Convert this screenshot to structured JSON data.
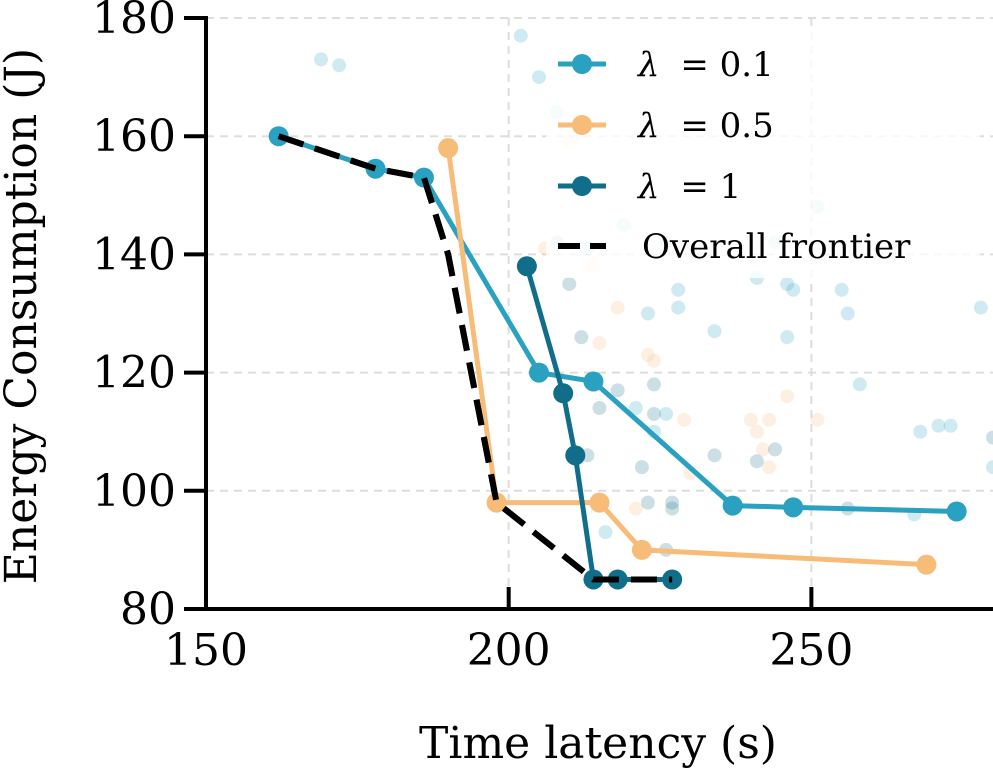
{
  "chart_data": {
    "type": "line",
    "title": "",
    "xlabel": "Time latency (s)",
    "ylabel": "Energy Consumption (J)",
    "xlim": [
      150,
      280
    ],
    "ylim": [
      80,
      180
    ],
    "xticks": [
      150,
      200,
      250
    ],
    "yticks": [
      80,
      100,
      120,
      140,
      160,
      180
    ],
    "grid": true,
    "legend_position": "top-right",
    "series": [
      {
        "name": "λ = 0.1",
        "symbol": "λ",
        "value_text": "= 0.1",
        "color": "#2aa1c0",
        "x": [
          162,
          178,
          186,
          205,
          214,
          237,
          247,
          274
        ],
        "y": [
          160,
          154.5,
          153,
          120,
          118.5,
          97.5,
          97.2,
          96.5
        ]
      },
      {
        "name": "λ = 0.5",
        "symbol": "λ",
        "value_text": "= 0.5",
        "color": "#f8bc79",
        "x": [
          190,
          198,
          215,
          222,
          269
        ],
        "y": [
          158,
          98,
          98,
          90,
          87.5
        ]
      },
      {
        "name": "λ = 1",
        "symbol": "λ",
        "value_text": "= 1",
        "color": "#116e8a",
        "x": [
          203,
          209,
          211,
          214,
          218,
          227
        ],
        "y": [
          138,
          116.5,
          106,
          85,
          85,
          85
        ]
      },
      {
        "name": "Overall frontier",
        "color": "#000000",
        "dashed": true,
        "x": [
          162,
          178,
          186,
          190,
          198,
          214,
          227
        ],
        "y": [
          160,
          154.5,
          153,
          140,
          98,
          85,
          85
        ]
      }
    ],
    "background_scatter": [
      {
        "x": 169,
        "y": 173,
        "c": "#2aa1c0"
      },
      {
        "x": 172,
        "y": 172,
        "c": "#2aa1c0"
      },
      {
        "x": 202,
        "y": 177,
        "c": "#2aa1c0"
      },
      {
        "x": 208,
        "y": 164,
        "c": "#2aa1c0"
      },
      {
        "x": 205,
        "y": 170,
        "c": "#2aa1c0"
      },
      {
        "x": 210,
        "y": 159,
        "c": "#f8bc79"
      },
      {
        "x": 219,
        "y": 145,
        "c": "#2aa1c0"
      },
      {
        "x": 226,
        "y": 142,
        "c": "#2aa1c0"
      },
      {
        "x": 206,
        "y": 141,
        "c": "#f8bc79"
      },
      {
        "x": 208,
        "y": 142,
        "c": "#116e8a"
      },
      {
        "x": 213,
        "y": 141,
        "c": "#2aa1c0"
      },
      {
        "x": 214,
        "y": 138,
        "c": "#f8bc79"
      },
      {
        "x": 210,
        "y": 135,
        "c": "#116e8a"
      },
      {
        "x": 218,
        "y": 131,
        "c": "#f8bc79"
      },
      {
        "x": 223,
        "y": 130,
        "c": "#2aa1c0"
      },
      {
        "x": 228,
        "y": 134,
        "c": "#2aa1c0"
      },
      {
        "x": 228,
        "y": 131,
        "c": "#2aa1c0"
      },
      {
        "x": 234,
        "y": 127,
        "c": "#2aa1c0"
      },
      {
        "x": 241,
        "y": 136,
        "c": "#2aa1c0"
      },
      {
        "x": 244,
        "y": 142,
        "c": "#2aa1c0"
      },
      {
        "x": 246,
        "y": 135,
        "c": "#2aa1c0"
      },
      {
        "x": 247,
        "y": 134,
        "c": "#2aa1c0"
      },
      {
        "x": 251,
        "y": 148,
        "c": "#2aa1c0"
      },
      {
        "x": 255,
        "y": 134,
        "c": "#2aa1c0"
      },
      {
        "x": 256,
        "y": 130,
        "c": "#2aa1c0"
      },
      {
        "x": 246,
        "y": 126,
        "c": "#2aa1c0"
      },
      {
        "x": 212,
        "y": 126,
        "c": "#116e8a"
      },
      {
        "x": 215,
        "y": 125,
        "c": "#f8bc79"
      },
      {
        "x": 223,
        "y": 123,
        "c": "#f8bc79"
      },
      {
        "x": 224,
        "y": 122,
        "c": "#f8bc79"
      },
      {
        "x": 224,
        "y": 118,
        "c": "#116e8a"
      },
      {
        "x": 218,
        "y": 117,
        "c": "#116e8a"
      },
      {
        "x": 215,
        "y": 114,
        "c": "#116e8a"
      },
      {
        "x": 221,
        "y": 114,
        "c": "#2aa1c0"
      },
      {
        "x": 224,
        "y": 113,
        "c": "#116e8a"
      },
      {
        "x": 226,
        "y": 113,
        "c": "#2aa1c0"
      },
      {
        "x": 229,
        "y": 112,
        "c": "#f8bc79"
      },
      {
        "x": 224,
        "y": 110,
        "c": "#2aa1c0"
      },
      {
        "x": 234,
        "y": 106,
        "c": "#116e8a"
      },
      {
        "x": 240,
        "y": 112,
        "c": "#f8bc79"
      },
      {
        "x": 241,
        "y": 110,
        "c": "#f8bc79"
      },
      {
        "x": 243,
        "y": 112,
        "c": "#f8bc79"
      },
      {
        "x": 242,
        "y": 107,
        "c": "#f8bc79"
      },
      {
        "x": 244,
        "y": 107,
        "c": "#116e8a"
      },
      {
        "x": 241,
        "y": 105,
        "c": "#116e8a"
      },
      {
        "x": 243,
        "y": 104,
        "c": "#f8bc79"
      },
      {
        "x": 246,
        "y": 116,
        "c": "#f8bc79"
      },
      {
        "x": 251,
        "y": 112,
        "c": "#f8bc79"
      },
      {
        "x": 258,
        "y": 118,
        "c": "#2aa1c0"
      },
      {
        "x": 268,
        "y": 110,
        "c": "#2aa1c0"
      },
      {
        "x": 271,
        "y": 111,
        "c": "#2aa1c0"
      },
      {
        "x": 273,
        "y": 111,
        "c": "#2aa1c0"
      },
      {
        "x": 278,
        "y": 131,
        "c": "#2aa1c0"
      },
      {
        "x": 280,
        "y": 109,
        "c": "#116e8a"
      },
      {
        "x": 280,
        "y": 104,
        "c": "#2aa1c0"
      },
      {
        "x": 221,
        "y": 97,
        "c": "#f8bc79"
      },
      {
        "x": 223,
        "y": 98,
        "c": "#116e8a"
      },
      {
        "x": 227,
        "y": 98,
        "c": "#116e8a"
      },
      {
        "x": 227,
        "y": 97,
        "c": "#116e8a"
      },
      {
        "x": 226,
        "y": 90,
        "c": "#116e8a"
      },
      {
        "x": 256,
        "y": 97,
        "c": "#116e8a"
      },
      {
        "x": 267,
        "y": 96,
        "c": "#2aa1c0"
      },
      {
        "x": 230,
        "y": 103,
        "c": "#f8bc79"
      },
      {
        "x": 213,
        "y": 106,
        "c": "#116e8a"
      },
      {
        "x": 222,
        "y": 104,
        "c": "#116e8a"
      },
      {
        "x": 216,
        "y": 93,
        "c": "#2aa1c0"
      }
    ]
  }
}
